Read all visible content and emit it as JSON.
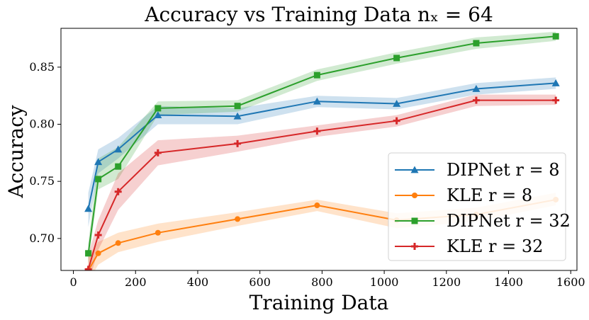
{
  "chart_data": {
    "type": "line",
    "title": "Accuracy vs Training Data nₓ = 64",
    "xlabel": "Training Data",
    "ylabel": "Accuracy",
    "xlim": [
      -40,
      1620
    ],
    "ylim": [
      0.672,
      0.884
    ],
    "xticks": [
      0,
      200,
      400,
      600,
      800,
      1000,
      1200,
      1400,
      1600
    ],
    "xtick_labels": [
      "0",
      "200",
      "400",
      "600",
      "800",
      "1000",
      "1200",
      "1400",
      "1600"
    ],
    "yticks": [
      0.7,
      0.75,
      0.8,
      0.85
    ],
    "ytick_labels": [
      "0.70",
      "0.75",
      "0.80",
      "0.85"
    ],
    "grid": false,
    "legend_position": "lower-right",
    "series": [
      {
        "name": "DIPNet r = 8",
        "color": "#1f77b4",
        "marker": "triangle",
        "x": [
          48,
          80,
          144,
          272,
          528,
          784,
          1040,
          1296,
          1552
        ],
        "y": [
          0.726,
          0.767,
          0.778,
          0.808,
          0.807,
          0.82,
          0.818,
          0.831,
          0.836
        ],
        "band_low": [
          0.71,
          0.757,
          0.77,
          0.8,
          0.8,
          0.815,
          0.813,
          0.826,
          0.831
        ],
        "band_high": [
          0.74,
          0.778,
          0.788,
          0.816,
          0.814,
          0.825,
          0.823,
          0.836,
          0.841
        ]
      },
      {
        "name": "KLE r = 8",
        "color": "#ff7f0e",
        "marker": "circle",
        "x": [
          48,
          80,
          144,
          272,
          528,
          784,
          1040,
          1296,
          1552
        ],
        "y": [
          0.672,
          0.687,
          0.696,
          0.705,
          0.717,
          0.729,
          0.716,
          0.721,
          0.734
        ],
        "band_low": [
          0.662,
          0.677,
          0.688,
          0.697,
          0.711,
          0.724,
          0.709,
          0.715,
          0.729
        ],
        "band_high": [
          0.684,
          0.697,
          0.705,
          0.713,
          0.723,
          0.734,
          0.722,
          0.727,
          0.74
        ]
      },
      {
        "name": "DIPNet r = 32",
        "color": "#2ca02c",
        "marker": "square",
        "x": [
          48,
          80,
          144,
          272,
          528,
          784,
          1040,
          1296,
          1552
        ],
        "y": [
          0.687,
          0.752,
          0.763,
          0.814,
          0.816,
          0.843,
          0.858,
          0.871,
          0.877
        ],
        "band_low": [
          0.678,
          0.743,
          0.752,
          0.808,
          0.811,
          0.838,
          0.853,
          0.866,
          0.873
        ],
        "band_high": [
          0.696,
          0.77,
          0.78,
          0.82,
          0.821,
          0.848,
          0.863,
          0.876,
          0.881
        ]
      },
      {
        "name": "KLE r = 32",
        "color": "#d62728",
        "marker": "plus",
        "x": [
          48,
          80,
          144,
          272,
          528,
          784,
          1040,
          1296,
          1552
        ],
        "y": [
          0.673,
          0.703,
          0.741,
          0.775,
          0.783,
          0.794,
          0.803,
          0.821,
          0.821
        ],
        "band_low": [
          0.66,
          0.69,
          0.725,
          0.764,
          0.776,
          0.789,
          0.798,
          0.816,
          0.817
        ],
        "band_high": [
          0.686,
          0.716,
          0.757,
          0.786,
          0.79,
          0.799,
          0.808,
          0.826,
          0.826
        ]
      }
    ]
  }
}
